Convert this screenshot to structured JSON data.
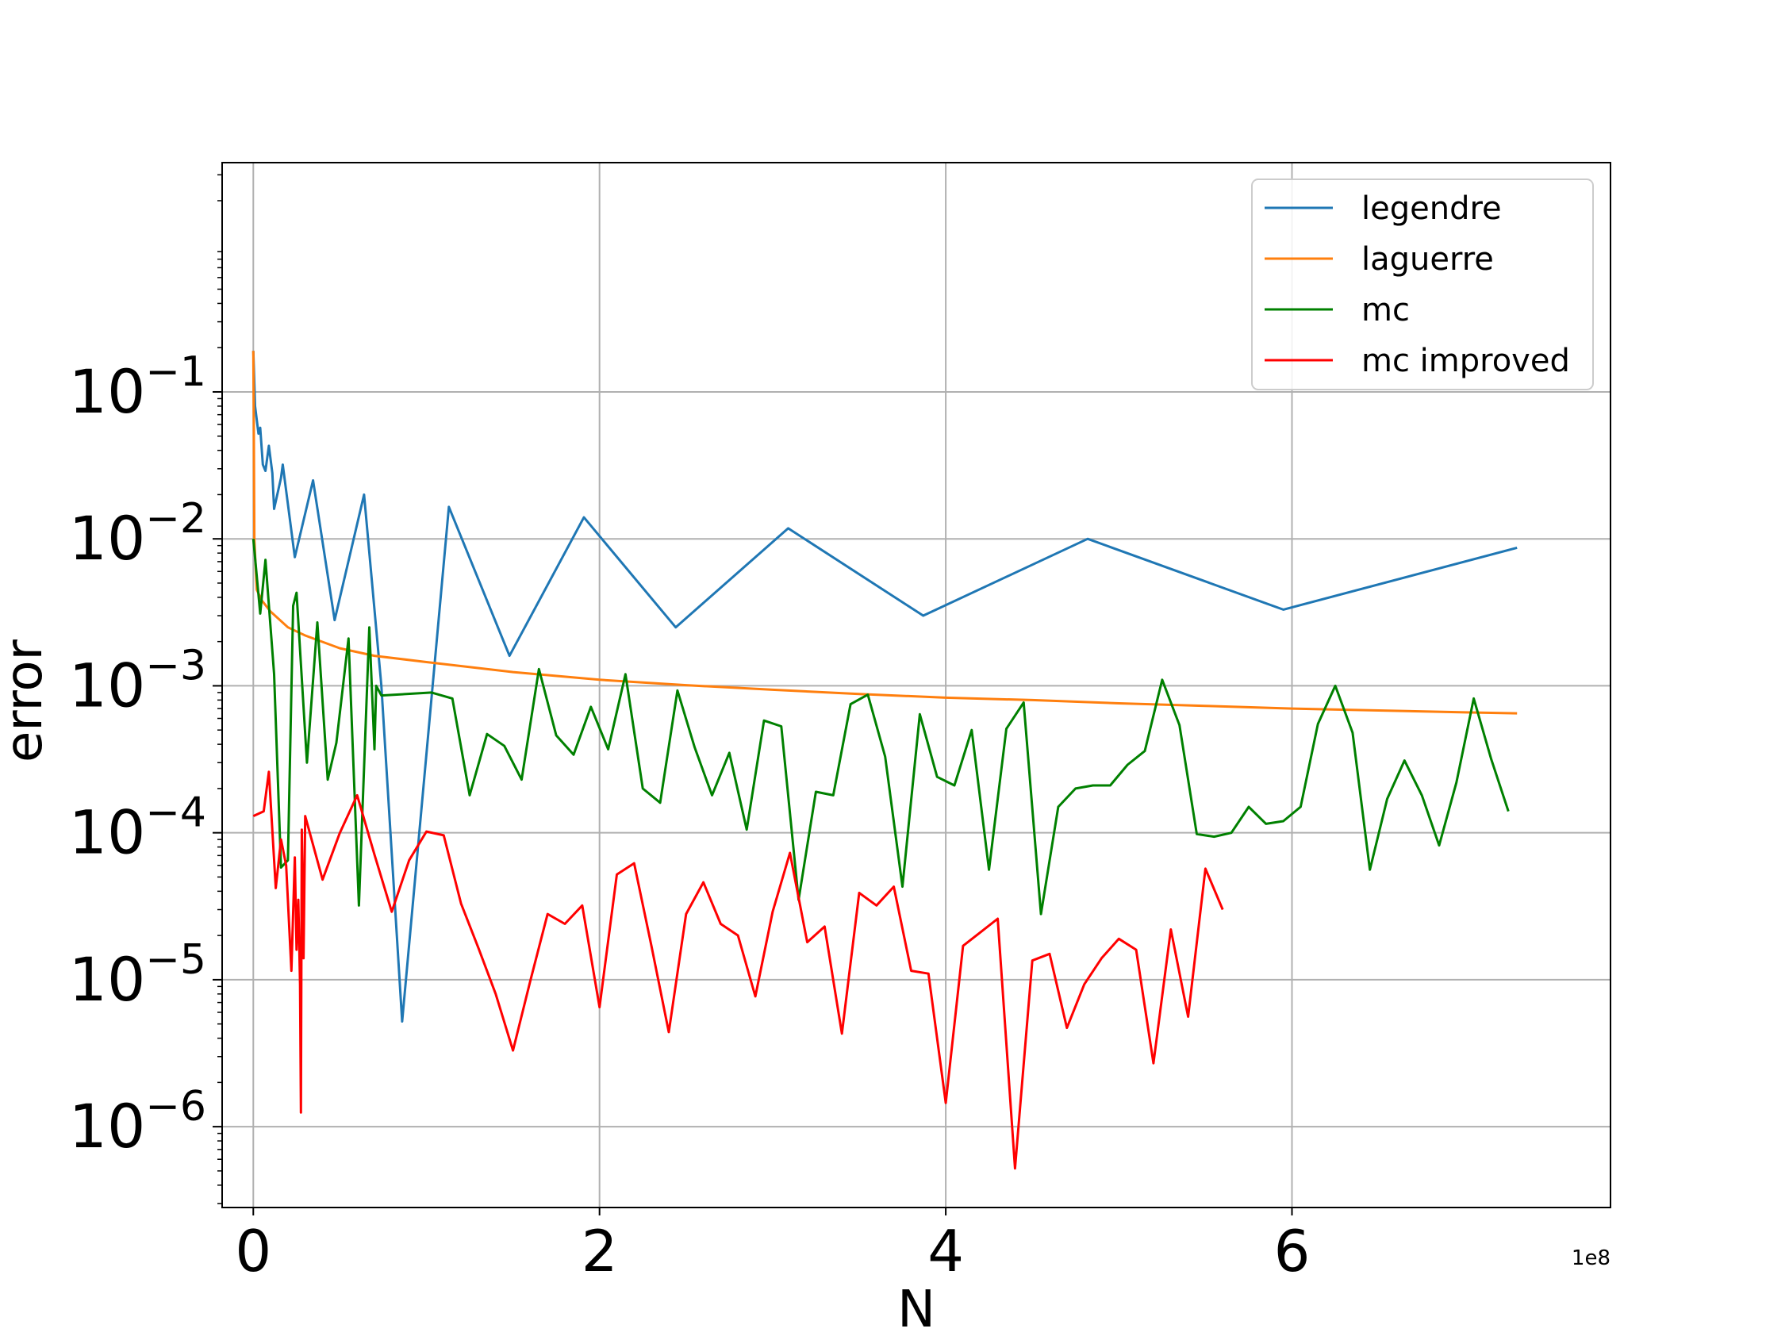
{
  "chart_data": {
    "type": "line",
    "xlabel": "N",
    "ylabel": "error",
    "x_multiplier_label": "1e8",
    "xlim": [
      -0.18,
      7.84
    ],
    "ylim_log10": [
      -6.55,
      0.56
    ],
    "y_scale": "log",
    "grid": true,
    "legend_position": "top-right",
    "x_ticks": [
      {
        "value": 0,
        "label": "0"
      },
      {
        "value": 2,
        "label": "2"
      },
      {
        "value": 4,
        "label": "4"
      },
      {
        "value": 6,
        "label": "6"
      }
    ],
    "y_ticks": [
      {
        "exp": -1,
        "base": "10",
        "sup": "−1"
      },
      {
        "exp": -2,
        "base": "10",
        "sup": "−2"
      },
      {
        "exp": -3,
        "base": "10",
        "sup": "−3"
      },
      {
        "exp": -4,
        "base": "10",
        "sup": "−4"
      },
      {
        "exp": -5,
        "base": "10",
        "sup": "−5"
      },
      {
        "exp": -6,
        "base": "10",
        "sup": "−6"
      }
    ],
    "series": [
      {
        "name": "legendre",
        "color": "#1f77b4",
        "points": [
          [
            0.0,
            0.19
          ],
          [
            0.01,
            0.08
          ],
          [
            0.03,
            0.052
          ],
          [
            0.04,
            0.057
          ],
          [
            0.055,
            0.032
          ],
          [
            0.07,
            0.029
          ],
          [
            0.09,
            0.043
          ],
          [
            0.11,
            0.028
          ],
          [
            0.12,
            0.016
          ],
          [
            0.16,
            0.026
          ],
          [
            0.17,
            0.032
          ],
          [
            0.24,
            0.0075
          ],
          [
            0.345,
            0.025
          ],
          [
            0.47,
            0.0028
          ],
          [
            0.64,
            0.02
          ],
          [
            0.74,
            0.001
          ],
          [
            0.86,
            5.2e-06
          ],
          [
            1.13,
            0.0165
          ],
          [
            1.48,
            0.0016
          ],
          [
            1.91,
            0.014
          ],
          [
            2.44,
            0.0025
          ],
          [
            3.09,
            0.0118
          ],
          [
            3.87,
            0.003
          ],
          [
            4.82,
            0.01
          ],
          [
            5.95,
            0.0033
          ],
          [
            7.3,
            0.0087
          ]
        ]
      },
      {
        "name": "laguerre",
        "color": "#ff7f0e",
        "points": [
          [
            0.0,
            0.19
          ],
          [
            0.003,
            0.06
          ],
          [
            0.006,
            0.01
          ],
          [
            0.02,
            0.0045
          ],
          [
            0.05,
            0.0038
          ],
          [
            0.1,
            0.0032
          ],
          [
            0.2,
            0.0025
          ],
          [
            0.3,
            0.0022
          ],
          [
            0.5,
            0.0018
          ],
          [
            0.7,
            0.0016
          ],
          [
            1.0,
            0.00145
          ],
          [
            1.5,
            0.00124
          ],
          [
            2.0,
            0.0011
          ],
          [
            2.5,
            0.00101
          ],
          [
            3.0,
            0.00094
          ],
          [
            3.5,
            0.00088
          ],
          [
            4.0,
            0.00083
          ],
          [
            4.5,
            0.0008
          ],
          [
            5.0,
            0.00076
          ],
          [
            5.5,
            0.00073
          ],
          [
            6.0,
            0.0007
          ],
          [
            6.5,
            0.00068
          ],
          [
            7.0,
            0.00066
          ],
          [
            7.3,
            0.00065
          ]
        ]
      },
      {
        "name": "mc",
        "color": "#008000",
        "points": [
          [
            0.0,
            0.01
          ],
          [
            0.04,
            0.0031
          ],
          [
            0.07,
            0.0072
          ],
          [
            0.12,
            0.0012
          ],
          [
            0.16,
            5.8e-05
          ],
          [
            0.2,
            6.5e-05
          ],
          [
            0.23,
            0.0035
          ],
          [
            0.25,
            0.0043
          ],
          [
            0.31,
            0.0003
          ],
          [
            0.37,
            0.0027
          ],
          [
            0.43,
            0.00023
          ],
          [
            0.48,
            0.00041
          ],
          [
            0.55,
            0.0021
          ],
          [
            0.61,
            3.2e-05
          ],
          [
            0.67,
            0.0025
          ],
          [
            0.7,
            0.00037
          ],
          [
            0.71,
            0.001
          ],
          [
            0.74,
            0.00086
          ],
          [
            1.03,
            0.0009
          ],
          [
            1.15,
            0.00082
          ],
          [
            1.25,
            0.00018
          ],
          [
            1.35,
            0.00047
          ],
          [
            1.45,
            0.00039
          ],
          [
            1.55,
            0.00023
          ],
          [
            1.65,
            0.0013
          ],
          [
            1.75,
            0.00046
          ],
          [
            1.85,
            0.00034
          ],
          [
            1.95,
            0.00072
          ],
          [
            2.05,
            0.00037
          ],
          [
            2.15,
            0.0012
          ],
          [
            2.25,
            0.0002
          ],
          [
            2.35,
            0.00016
          ],
          [
            2.45,
            0.00093
          ],
          [
            2.55,
            0.00038
          ],
          [
            2.65,
            0.00018
          ],
          [
            2.75,
            0.00035
          ],
          [
            2.85,
            0.000105
          ],
          [
            2.95,
            0.00058
          ],
          [
            3.05,
            0.00053
          ],
          [
            3.15,
            3.5e-05
          ],
          [
            3.25,
            0.00019
          ],
          [
            3.35,
            0.00018
          ],
          [
            3.45,
            0.00075
          ],
          [
            3.55,
            0.00087
          ],
          [
            3.65,
            0.00033
          ],
          [
            3.75,
            4.3e-05
          ],
          [
            3.85,
            0.00064
          ],
          [
            3.95,
            0.00024
          ],
          [
            4.05,
            0.00021
          ],
          [
            4.15,
            0.0005
          ],
          [
            4.25,
            5.6e-05
          ],
          [
            4.35,
            0.00051
          ],
          [
            4.45,
            0.00077
          ],
          [
            4.55,
            2.8e-05
          ],
          [
            4.65,
            0.00015
          ],
          [
            4.75,
            0.0002
          ],
          [
            4.85,
            0.00021
          ],
          [
            4.95,
            0.00021
          ],
          [
            5.05,
            0.00029
          ],
          [
            5.15,
            0.00036
          ],
          [
            5.25,
            0.0011
          ],
          [
            5.35,
            0.00054
          ],
          [
            5.45,
            9.8e-05
          ],
          [
            5.55,
            9.4e-05
          ],
          [
            5.65,
            0.0001
          ],
          [
            5.75,
            0.00015
          ],
          [
            5.85,
            0.000115
          ],
          [
            5.95,
            0.00012
          ],
          [
            6.05,
            0.00015
          ],
          [
            6.15,
            0.00055
          ],
          [
            6.25,
            0.001
          ],
          [
            6.35,
            0.00048
          ],
          [
            6.45,
            5.6e-05
          ],
          [
            6.55,
            0.00017
          ],
          [
            6.65,
            0.00031
          ],
          [
            6.75,
            0.00018
          ],
          [
            6.85,
            8.2e-05
          ],
          [
            6.95,
            0.00022
          ],
          [
            7.05,
            0.00082
          ],
          [
            7.15,
            0.00032
          ],
          [
            7.25,
            0.00014
          ]
        ]
      },
      {
        "name": "mc improved",
        "color": "#ff0000",
        "points": [
          [
            0.0,
            0.00013
          ],
          [
            0.06,
            0.00014
          ],
          [
            0.09,
            0.00026
          ],
          [
            0.13,
            4.2e-05
          ],
          [
            0.16,
            9e-05
          ],
          [
            0.19,
            6e-05
          ],
          [
            0.22,
            1.15e-05
          ],
          [
            0.24,
            6.8e-05
          ],
          [
            0.25,
            1.6e-05
          ],
          [
            0.26,
            3.5e-05
          ],
          [
            0.27,
            9.3e-06
          ],
          [
            0.275,
            1.25e-06
          ],
          [
            0.28,
            0.000105
          ],
          [
            0.29,
            1.4e-05
          ],
          [
            0.3,
            0.00013
          ],
          [
            0.4,
            4.8e-05
          ],
          [
            0.5,
            0.0001
          ],
          [
            0.6,
            0.00018
          ],
          [
            0.7,
            7.1e-05
          ],
          [
            0.8,
            2.9e-05
          ],
          [
            0.9,
            6.5e-05
          ],
          [
            1.0,
            0.000102
          ],
          [
            1.1,
            9.6e-05
          ],
          [
            1.2,
            3.3e-05
          ],
          [
            1.3,
            1.65e-05
          ],
          [
            1.4,
            8e-06
          ],
          [
            1.5,
            3.3e-06
          ],
          [
            1.6,
            9.8e-06
          ],
          [
            1.7,
            2.8e-05
          ],
          [
            1.8,
            2.4e-05
          ],
          [
            1.9,
            3.2e-05
          ],
          [
            2.0,
            6.5e-06
          ],
          [
            2.1,
            5.2e-05
          ],
          [
            2.2,
            6.2e-05
          ],
          [
            2.3,
            1.7e-05
          ],
          [
            2.4,
            4.4e-06
          ],
          [
            2.5,
            2.8e-05
          ],
          [
            2.6,
            4.6e-05
          ],
          [
            2.7,
            2.4e-05
          ],
          [
            2.8,
            2e-05
          ],
          [
            2.9,
            7.7e-06
          ],
          [
            3.0,
            2.9e-05
          ],
          [
            3.1,
            7.3e-05
          ],
          [
            3.2,
            1.8e-05
          ],
          [
            3.3,
            2.3e-05
          ],
          [
            3.4,
            4.3e-06
          ],
          [
            3.5,
            3.9e-05
          ],
          [
            3.6,
            3.2e-05
          ],
          [
            3.7,
            4.3e-05
          ],
          [
            3.8,
            1.15e-05
          ],
          [
            3.9,
            1.1e-05
          ],
          [
            4.0,
            1.45e-06
          ],
          [
            4.1,
            1.7e-05
          ],
          [
            4.2,
            2.1e-05
          ],
          [
            4.3,
            2.6e-05
          ],
          [
            4.4,
            5.2e-07
          ],
          [
            4.5,
            1.35e-05
          ],
          [
            4.6,
            1.5e-05
          ],
          [
            4.7,
            4.7e-06
          ],
          [
            4.8,
            9.3e-06
          ],
          [
            4.9,
            1.4e-05
          ],
          [
            5.0,
            1.9e-05
          ],
          [
            5.1,
            1.6e-05
          ],
          [
            5.2,
            2.7e-06
          ],
          [
            5.3,
            2.2e-05
          ],
          [
            5.4,
            5.6e-06
          ],
          [
            5.5,
            5.7e-05
          ],
          [
            5.6,
            3e-05
          ]
        ]
      }
    ]
  }
}
